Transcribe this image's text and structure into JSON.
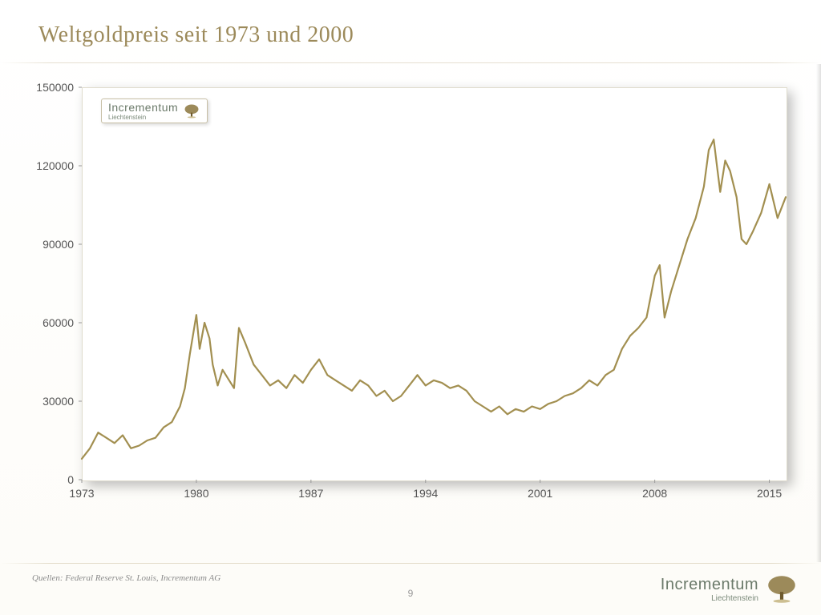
{
  "title": "Weltgoldpreis seit 1973 und 2000",
  "source": "Quellen: Federal Reserve St. Louis, Incrementum AG",
  "page_number": "9",
  "brand": {
    "name": "Incrementum",
    "sub": "Liechtenstein"
  },
  "chart": {
    "type": "line",
    "line_color": "#a28f50",
    "line_width": 2.2,
    "background_color": "#ffffff",
    "grid": false,
    "ylim": [
      0,
      150000
    ],
    "yticks": [
      0,
      30000,
      60000,
      90000,
      120000,
      150000
    ],
    "ylabels": [
      "0",
      "30000",
      "60000",
      "90000",
      "120000",
      "150000"
    ],
    "xlim": [
      1973,
      2016
    ],
    "xticks": [
      1973,
      1980,
      1987,
      1994,
      2001,
      2008,
      2015
    ],
    "xlabels": [
      "1973",
      "1980",
      "1987",
      "1994",
      "2001",
      "2008",
      "2015"
    ],
    "axis_fontsize": 14,
    "axis_color": "#555555",
    "data": {
      "x": [
        1973.0,
        1973.5,
        1974.0,
        1974.5,
        1975.0,
        1975.5,
        1976.0,
        1976.5,
        1977.0,
        1977.5,
        1978.0,
        1978.5,
        1979.0,
        1979.3,
        1979.6,
        1980.0,
        1980.2,
        1980.5,
        1980.8,
        1981.0,
        1981.3,
        1981.6,
        1982.0,
        1982.3,
        1982.6,
        1983.0,
        1983.5,
        1984.0,
        1984.5,
        1985.0,
        1985.5,
        1986.0,
        1986.5,
        1987.0,
        1987.5,
        1988.0,
        1988.5,
        1989.0,
        1989.5,
        1990.0,
        1990.5,
        1991.0,
        1991.5,
        1992.0,
        1992.5,
        1993.0,
        1993.5,
        1994.0,
        1994.5,
        1995.0,
        1995.5,
        1996.0,
        1996.5,
        1997.0,
        1997.5,
        1998.0,
        1998.5,
        1999.0,
        1999.5,
        2000.0,
        2000.5,
        2001.0,
        2001.5,
        2002.0,
        2002.5,
        2003.0,
        2003.5,
        2004.0,
        2004.5,
        2005.0,
        2005.5,
        2006.0,
        2006.5,
        2007.0,
        2007.5,
        2008.0,
        2008.3,
        2008.6,
        2009.0,
        2009.5,
        2010.0,
        2010.5,
        2011.0,
        2011.3,
        2011.6,
        2011.8,
        2012.0,
        2012.3,
        2012.6,
        2013.0,
        2013.3,
        2013.6,
        2014.0,
        2014.5,
        2015.0,
        2015.5,
        2016.0
      ],
      "y": [
        8000,
        12000,
        18000,
        16000,
        14000,
        17000,
        12000,
        13000,
        15000,
        16000,
        20000,
        22000,
        28000,
        35000,
        48000,
        63000,
        50000,
        60000,
        54000,
        44000,
        36000,
        42000,
        38000,
        35000,
        58000,
        52000,
        44000,
        40000,
        36000,
        38000,
        35000,
        40000,
        37000,
        42000,
        46000,
        40000,
        38000,
        36000,
        34000,
        38000,
        36000,
        32000,
        34000,
        30000,
        32000,
        36000,
        40000,
        36000,
        38000,
        37000,
        35000,
        36000,
        34000,
        30000,
        28000,
        26000,
        28000,
        25000,
        27000,
        26000,
        28000,
        27000,
        29000,
        30000,
        32000,
        33000,
        35000,
        38000,
        36000,
        40000,
        42000,
        50000,
        55000,
        58000,
        62000,
        78000,
        82000,
        62000,
        72000,
        82000,
        92000,
        100000,
        112000,
        126000,
        130000,
        120000,
        110000,
        122000,
        118000,
        108000,
        92000,
        90000,
        95000,
        102000,
        113000,
        100000,
        108000
      ]
    }
  }
}
